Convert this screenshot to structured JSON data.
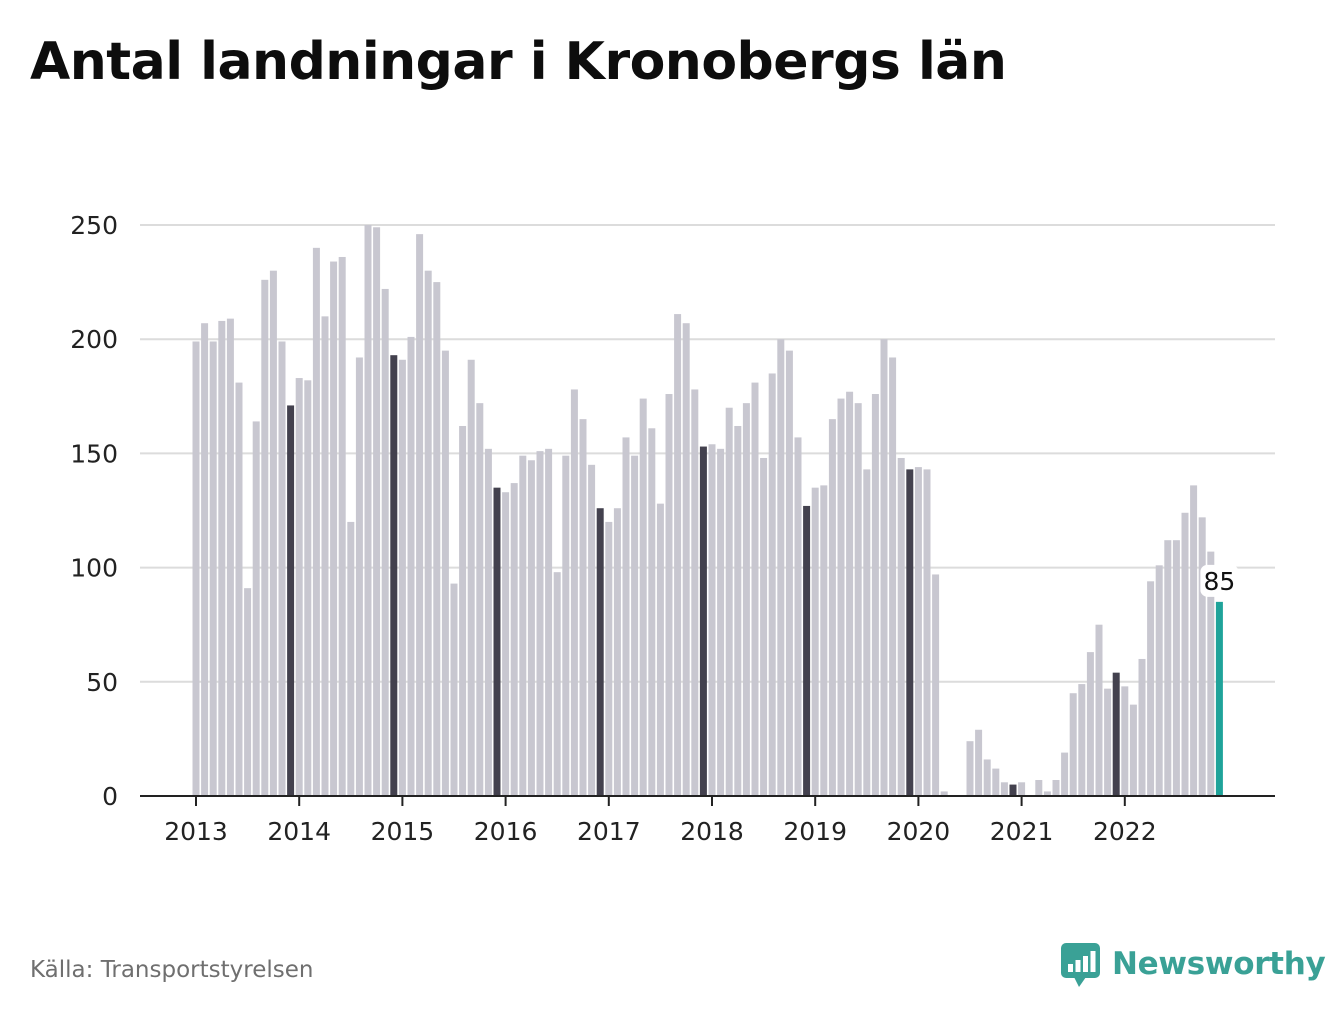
{
  "title": "Antal landningar i Kronobergs län",
  "source": "Källa: Transportstyrelsen",
  "brand": {
    "name": "Newsworthy",
    "icon": "newsworthy-logo-icon"
  },
  "colors": {
    "bar_default": "#c8c7d0",
    "bar_december": "#43414e",
    "bar_latest": "#1fa39a",
    "gridline": "#dcdcdc",
    "axis": "#222222",
    "brand": "#3aa196"
  },
  "chart_data": {
    "type": "bar",
    "title": "Antal landningar i Kronobergs län",
    "xlabel": "",
    "ylabel": "",
    "ylim": [
      0,
      250
    ],
    "yticks": [
      0,
      50,
      100,
      150,
      200,
      250
    ],
    "xtick_labels": [
      "2013",
      "2014",
      "2015",
      "2016",
      "2017",
      "2018",
      "2019",
      "2020",
      "2021",
      "2022"
    ],
    "grid": true,
    "frequency": "monthly",
    "start": "2013-01",
    "end": "2022-12",
    "highlight": "December bars darker; latest month highlighted with value label",
    "latest_label": "85",
    "values": [
      199,
      207,
      199,
      208,
      209,
      181,
      91,
      164,
      226,
      230,
      199,
      171,
      183,
      182,
      240,
      210,
      234,
      236,
      120,
      192,
      250,
      249,
      222,
      193,
      191,
      201,
      246,
      230,
      225,
      195,
      93,
      162,
      191,
      172,
      152,
      135,
      133,
      137,
      149,
      147,
      151,
      152,
      98,
      149,
      178,
      165,
      145,
      126,
      120,
      126,
      157,
      149,
      174,
      161,
      128,
      176,
      211,
      207,
      178,
      153,
      154,
      152,
      170,
      162,
      172,
      181,
      148,
      185,
      200,
      195,
      157,
      127,
      135,
      136,
      165,
      174,
      177,
      172,
      143,
      176,
      200,
      192,
      148,
      143,
      144,
      143,
      97,
      2,
      0,
      0,
      24,
      29,
      16,
      12,
      6,
      5,
      6,
      0,
      7,
      2,
      7,
      19,
      45,
      49,
      63,
      75,
      47,
      54,
      48,
      40,
      60,
      94,
      101,
      112,
      112,
      124,
      136,
      122,
      107,
      85
    ]
  }
}
